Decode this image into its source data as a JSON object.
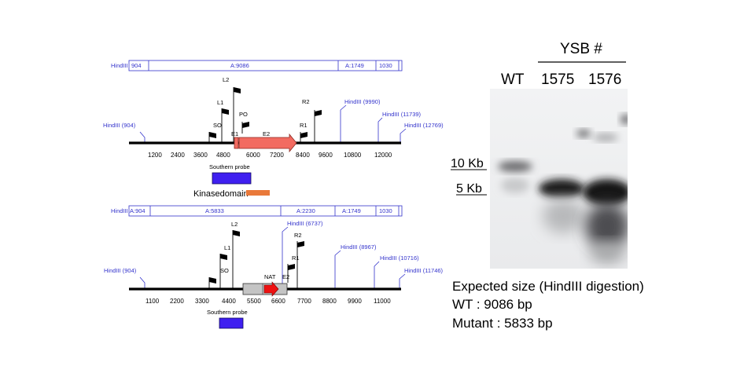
{
  "wt_map": {
    "bar_segments": [
      "HindIII",
      "904",
      "A:9086",
      "A:1749",
      "1030"
    ],
    "sites": [
      "HindIII (904)",
      "HindIII (9990)",
      "HindIII (11739)",
      "HindIII (12769)"
    ],
    "primers": [
      "L2",
      "L1",
      "SO",
      "PO",
      "R2",
      "R1"
    ],
    "exons": [
      "E1",
      "E2"
    ],
    "ticks": [
      "1200",
      "2400",
      "3600",
      "4800",
      "6000",
      "7200",
      "8400",
      "9600",
      "10800",
      "12000"
    ],
    "probe_label": "Southern probe",
    "domain_label": "Kinasedomain"
  },
  "mut_map": {
    "bar_segments": [
      "HindIII",
      "A:904",
      "A:5833",
      "A:2230",
      "A:1749",
      "1030"
    ],
    "sites": [
      "HindIII (904)",
      "HindIII (6737)",
      "HindIII (8967)",
      "HindIII (10716)",
      "HindIII (11746)"
    ],
    "primers": [
      "L2",
      "L1",
      "SO",
      "R2",
      "R1"
    ],
    "exons": [
      "E2"
    ],
    "marker": "NAT",
    "ticks": [
      "1100",
      "2200",
      "3300",
      "4400",
      "5500",
      "6600",
      "7700",
      "8800",
      "9900",
      "11000"
    ],
    "probe_label": "Southern probe"
  },
  "blot": {
    "group_label": "YSB #",
    "lanes": [
      "WT",
      "1575",
      "1576"
    ],
    "size_markers": [
      "10 Kb",
      "5 Kb"
    ]
  },
  "caption": {
    "line1": "Expected size (HindIII digestion)",
    "line2": "WT : 9086 bp",
    "line3": "Mutant : 5833 bp"
  },
  "colors": {
    "site_blue": "#3333cc",
    "exon_red": "#f26b61",
    "probe_blue": "#3f1ff0",
    "domain_orange": "#e9793a",
    "nat_red": "#ee1111",
    "cassette_gray": "#c4c4c4"
  }
}
